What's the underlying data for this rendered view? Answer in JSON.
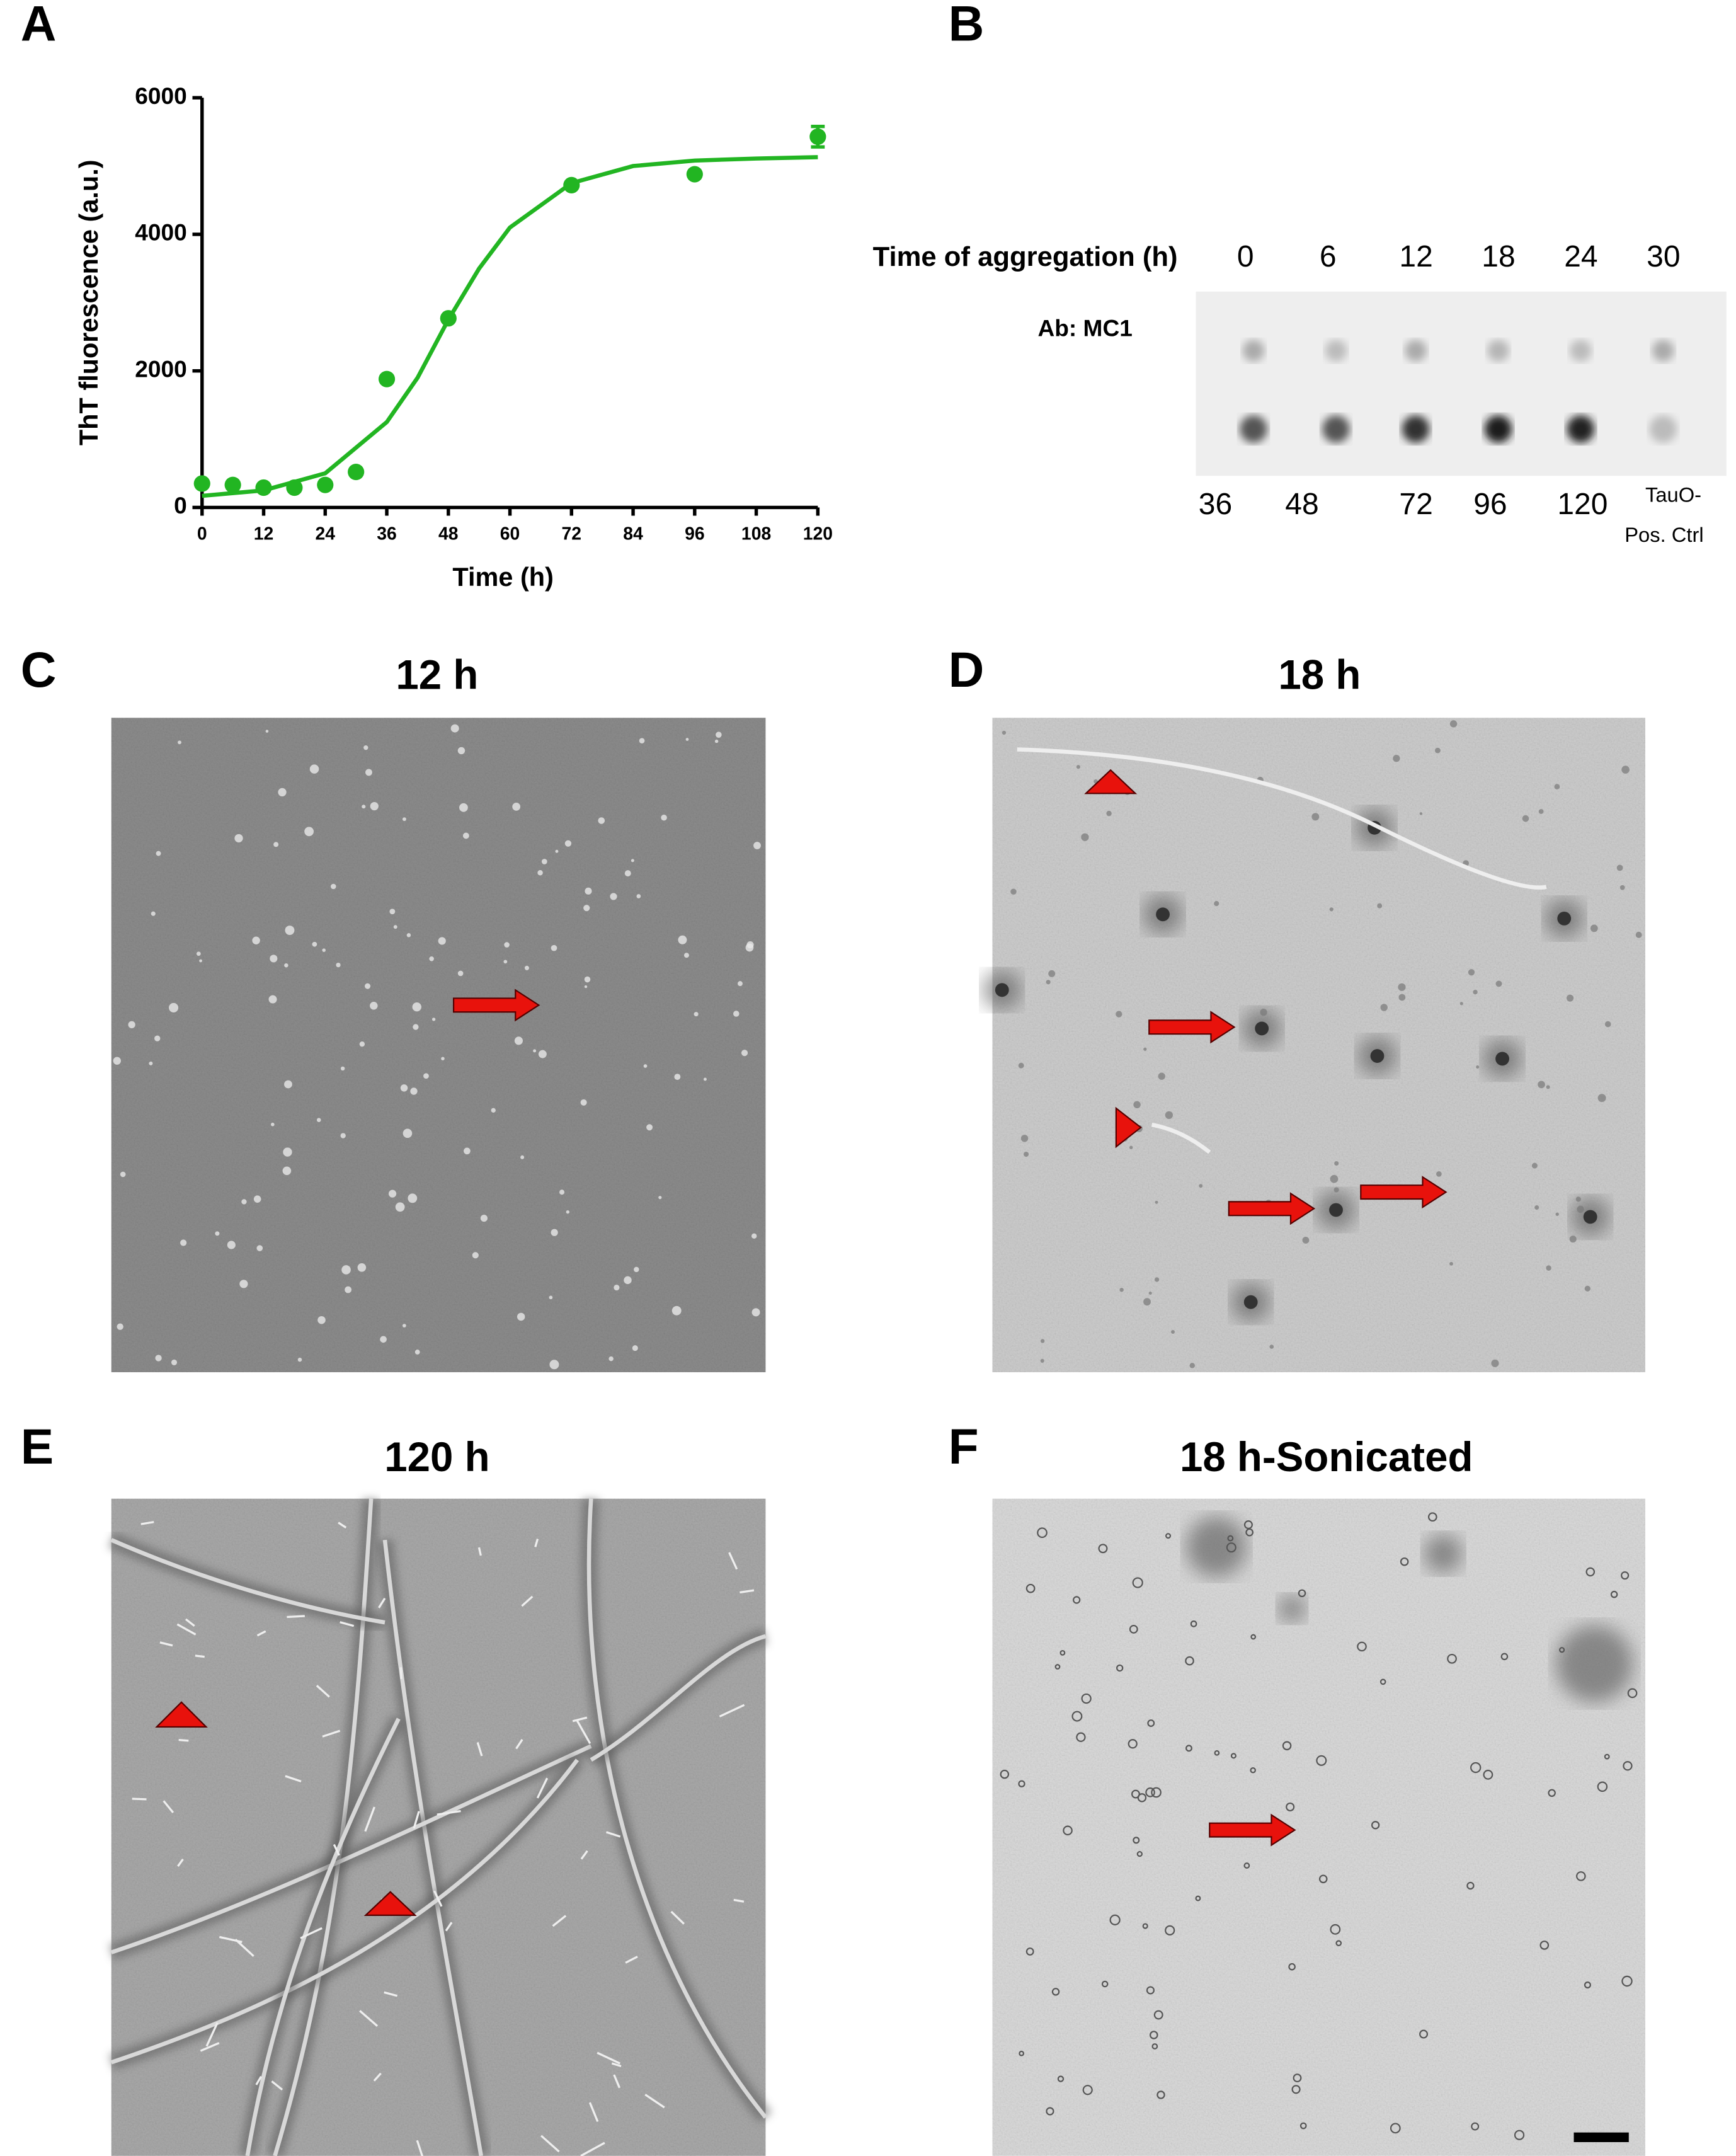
{
  "panel_labels": [
    "A",
    "B",
    "C",
    "D",
    "E",
    "F"
  ],
  "chart_data": {
    "type": "scatter",
    "x_label": "Time (h)",
    "y_label": "ThT fluorescence (a.u.)",
    "xlim": [
      0,
      120
    ],
    "ylim": [
      0,
      6000
    ],
    "xticks": [
      0,
      12,
      24,
      36,
      48,
      60,
      72,
      84,
      96,
      108,
      120
    ],
    "yticks": [
      0,
      2000,
      4000,
      6000
    ],
    "color": "#22b522",
    "series": [
      {
        "x": [
          0,
          6,
          12,
          18,
          24,
          30,
          36,
          48,
          72,
          96,
          120
        ],
        "values": [
          350,
          330,
          290,
          290,
          330,
          520,
          1880,
          2770,
          4720,
          4880,
          5430
        ],
        "errors": [
          null,
          null,
          null,
          null,
          null,
          null,
          null,
          null,
          null,
          null,
          150
        ]
      },
      {
        "x": [
          0,
          12,
          24,
          36,
          42,
          48,
          54,
          60,
          72,
          84,
          96,
          108,
          120
        ],
        "values": [
          170,
          250,
          500,
          1250,
          1900,
          2750,
          3500,
          4100,
          4750,
          5000,
          5080,
          5110,
          5130
        ]
      }
    ]
  },
  "blot": {
    "axis_title": "Time of aggregation (h)",
    "antibody": "Ab: MC1",
    "top_labels": [
      "0",
      "6",
      "12",
      "18",
      "24",
      "30"
    ],
    "bottom_labels": [
      "36",
      "48",
      "72",
      "96",
      "120"
    ],
    "control_label": [
      "TauO-",
      "Pos. Ctrl"
    ]
  },
  "micrographs": [
    {
      "title": "12 h"
    },
    {
      "title": "18 h"
    },
    {
      "title": "120 h"
    },
    {
      "title": "18 h-Sonicated"
    }
  ]
}
